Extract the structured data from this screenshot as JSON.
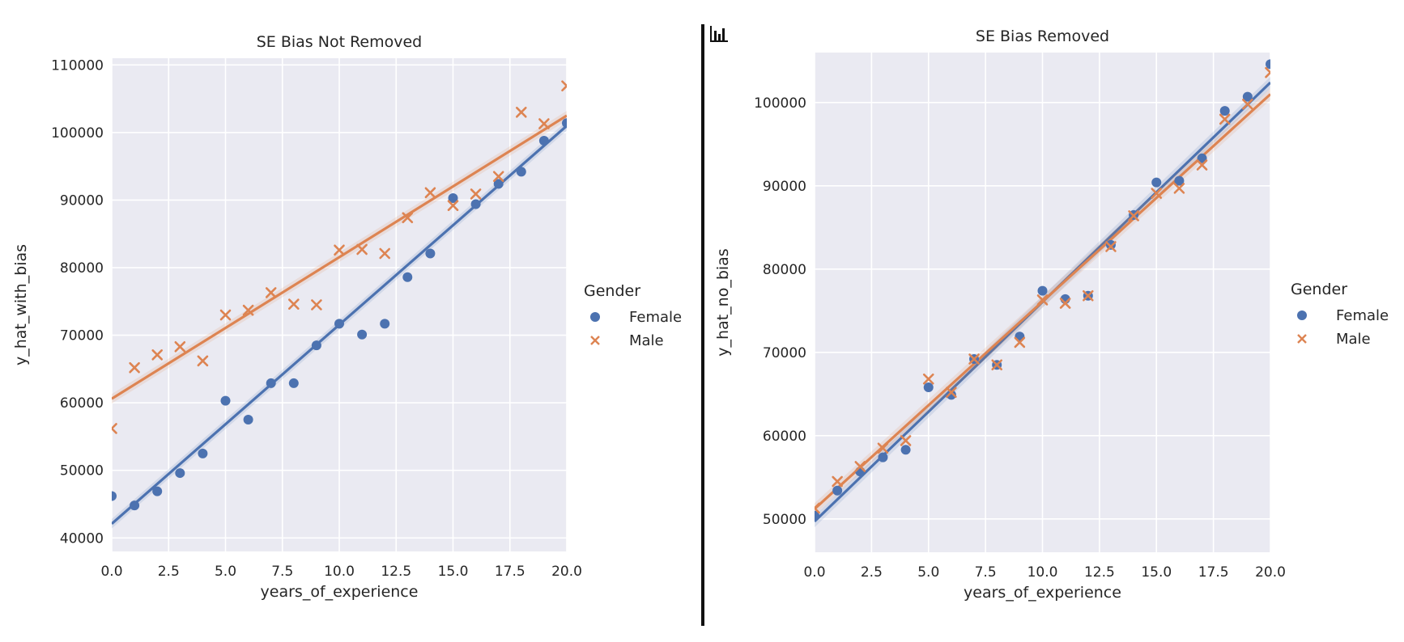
{
  "widget": {
    "icon": "bar-chart-icon"
  },
  "colors": {
    "female": "#4c72b0",
    "male": "#dd8452",
    "plot_bg": "#eaeaf2",
    "grid": "#ffffff",
    "text": "#262626"
  },
  "chart_data": [
    {
      "type": "scatter",
      "title": "SE Bias Not Removed",
      "xlabel": "years_of_experience",
      "ylabel": "y_hat_with_bias",
      "xlim": [
        0,
        20
      ],
      "ylim": [
        38000,
        111000
      ],
      "xticks": [
        0,
        2.5,
        5,
        7.5,
        10,
        12.5,
        15,
        17.5,
        20
      ],
      "xtick_labels": [
        "0.0",
        "2.5",
        "5.0",
        "7.5",
        "10.0",
        "12.5",
        "15.0",
        "17.5",
        "20.0"
      ],
      "yticks": [
        40000,
        50000,
        60000,
        70000,
        80000,
        90000,
        100000,
        110000
      ],
      "ytick_labels": [
        "40000",
        "50000",
        "60000",
        "70000",
        "80000",
        "90000",
        "100000",
        "110000"
      ],
      "grid": true,
      "legend": {
        "title": "Gender",
        "placement": "outside-right"
      },
      "series": [
        {
          "name": "Female",
          "marker": "circle",
          "x": [
            0,
            1,
            2,
            3,
            4,
            5,
            6,
            7,
            8,
            9,
            10,
            11,
            12,
            13,
            14,
            15,
            16,
            17,
            18,
            19,
            20
          ],
          "y": [
            46200,
            44800,
            46900,
            49600,
            52500,
            60300,
            57500,
            62900,
            62900,
            68500,
            71700,
            70100,
            71700,
            78600,
            82100,
            90300,
            89400,
            92400,
            94200,
            98800,
            101400
          ],
          "fit": [
            42100,
            101000
          ]
        },
        {
          "name": "Male",
          "marker": "x",
          "x": [
            0,
            1,
            2,
            3,
            4,
            5,
            6,
            7,
            8,
            9,
            10,
            11,
            12,
            13,
            14,
            15,
            16,
            17,
            18,
            19,
            20
          ],
          "y": [
            56200,
            65200,
            67100,
            68300,
            66200,
            73000,
            73700,
            76300,
            74600,
            74500,
            82600,
            82700,
            82100,
            87400,
            91100,
            89200,
            90900,
            93500,
            103000,
            101300,
            106900
          ],
          "fit": [
            60600,
            102500
          ]
        }
      ]
    },
    {
      "type": "scatter",
      "title": "SE Bias Removed",
      "xlabel": "years_of_experience",
      "ylabel": "y_hat_no_bias",
      "xlim": [
        0,
        20
      ],
      "ylim": [
        46000,
        106000
      ],
      "xticks": [
        0,
        2.5,
        5,
        7.5,
        10,
        12.5,
        15,
        17.5,
        20
      ],
      "xtick_labels": [
        "0.0",
        "2.5",
        "5.0",
        "7.5",
        "10.0",
        "12.5",
        "15.0",
        "17.5",
        "20.0"
      ],
      "yticks": [
        50000,
        60000,
        70000,
        80000,
        90000,
        100000
      ],
      "ytick_labels": [
        "50000",
        "60000",
        "70000",
        "80000",
        "90000",
        "100000"
      ],
      "grid": true,
      "legend": {
        "title": "Gender",
        "placement": "outside-right"
      },
      "series": [
        {
          "name": "Female",
          "marker": "circle",
          "x": [
            0,
            1,
            2,
            3,
            4,
            5,
            6,
            7,
            8,
            9,
            10,
            11,
            12,
            13,
            14,
            15,
            16,
            17,
            18,
            19,
            20
          ],
          "y": [
            50400,
            53400,
            55700,
            57400,
            58300,
            65800,
            64900,
            69200,
            68500,
            71900,
            77400,
            76400,
            76800,
            82900,
            86500,
            90400,
            90600,
            93300,
            99000,
            100700,
            104600
          ],
          "fit": [
            49700,
            102400
          ]
        },
        {
          "name": "Male",
          "marker": "x",
          "x": [
            0,
            1,
            2,
            3,
            4,
            5,
            6,
            7,
            8,
            9,
            10,
            11,
            12,
            13,
            14,
            15,
            16,
            17,
            18,
            19,
            20
          ],
          "y": [
            51300,
            54500,
            56300,
            58500,
            59400,
            66800,
            65200,
            69200,
            68500,
            71200,
            76300,
            75900,
            76800,
            82700,
            86400,
            89100,
            89700,
            92500,
            98000,
            99800,
            103600
          ],
          "fit": [
            51200,
            101000
          ]
        }
      ]
    }
  ]
}
